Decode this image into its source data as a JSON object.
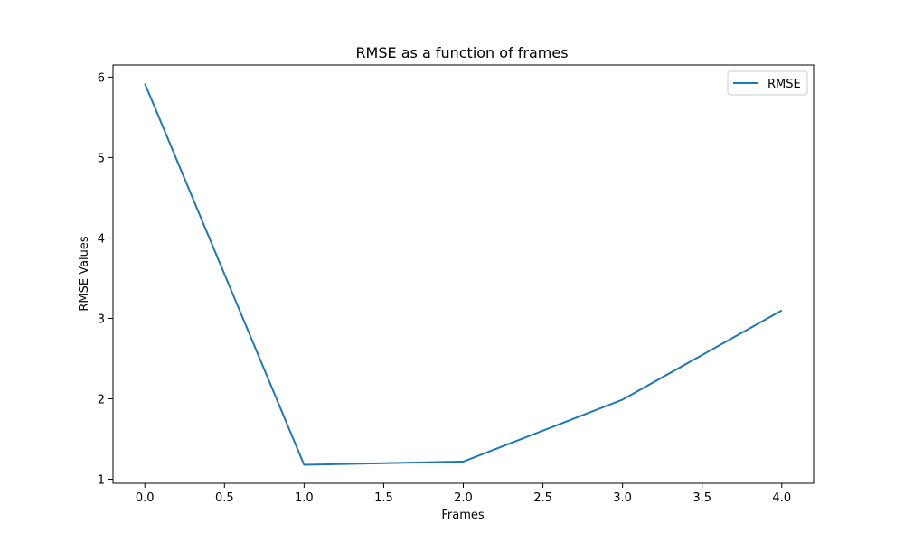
{
  "chart_data": {
    "type": "line",
    "title": "RMSE as a function of frames",
    "xlabel": "Frames",
    "ylabel": "RMSE Values",
    "xlim": [
      -0.2,
      4.2
    ],
    "ylim": [
      0.95,
      6.15
    ],
    "xticks": [
      0.0,
      0.5,
      1.0,
      1.5,
      2.0,
      2.5,
      3.0,
      3.5,
      4.0
    ],
    "xtick_labels": [
      "0.0",
      "0.5",
      "1.0",
      "1.5",
      "2.0",
      "2.5",
      "3.0",
      "3.5",
      "4.0"
    ],
    "yticks": [
      1,
      2,
      3,
      4,
      5,
      6
    ],
    "ytick_labels": [
      "1",
      "2",
      "3",
      "4",
      "5",
      "6"
    ],
    "grid": false,
    "legend": "top-right",
    "x": [
      0,
      1,
      2,
      3,
      4
    ],
    "series": [
      {
        "name": "RMSE",
        "values": [
          5.92,
          1.18,
          1.22,
          1.99,
          3.1
        ],
        "color": "#1f77b4"
      }
    ]
  }
}
